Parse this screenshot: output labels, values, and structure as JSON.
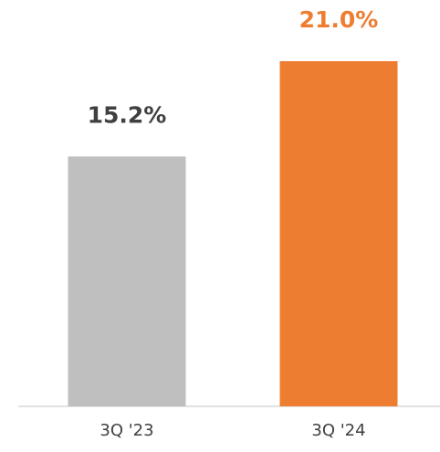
{
  "chart_data": {
    "type": "bar",
    "categories": [
      "3Q '23",
      "3Q '24"
    ],
    "values": [
      15.2,
      21.0
    ],
    "value_labels": [
      "15.2%",
      "21.0%"
    ],
    "colors": [
      "#bfbfbf",
      "#ed7d31"
    ],
    "value_label_colors": [
      "#404040",
      "#ed7d31"
    ]
  }
}
